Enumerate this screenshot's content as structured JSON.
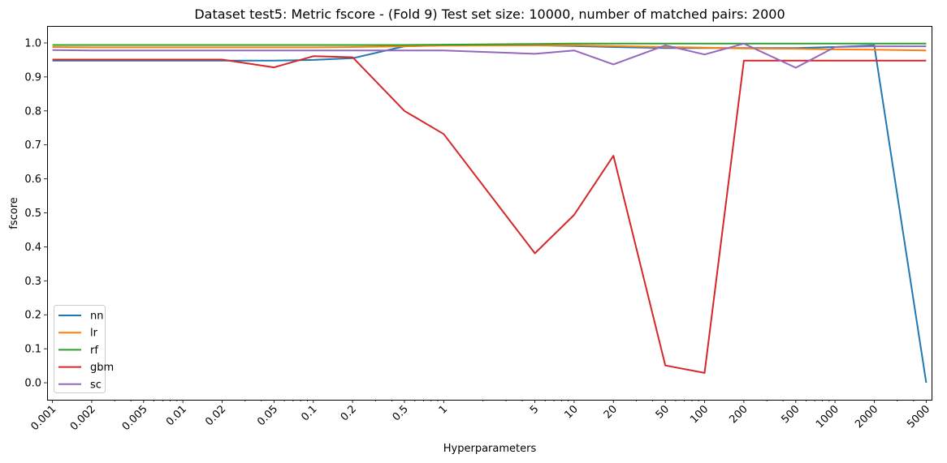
{
  "chart_data": {
    "type": "line",
    "title": "Dataset test5: Metric fscore - (Fold 9) Test set size: 10000, number of matched pairs: 2000",
    "xlabel": "Hyperparameters",
    "ylabel": "fscore",
    "xscale": "log",
    "xlim": [
      0.00091,
      5500
    ],
    "ylim": [
      -0.05,
      1.05
    ],
    "x": [
      0.001,
      0.002,
      0.005,
      0.01,
      0.02,
      0.05,
      0.1,
      0.2,
      0.5,
      1,
      5,
      10,
      20,
      50,
      100,
      200,
      500,
      1000,
      2000,
      5000
    ],
    "x_tick_labels": [
      "0.001",
      "0.002",
      "0.005",
      "0.01",
      "0.02",
      "0.05",
      "0.1",
      "0.2",
      "0.5",
      "1",
      "5",
      "10",
      "20",
      "50",
      "100",
      "200",
      "500",
      "1000",
      "2000",
      "5000"
    ],
    "y_ticks": [
      0.0,
      0.1,
      0.2,
      0.3,
      0.4,
      0.5,
      0.6,
      0.7,
      0.8,
      0.9,
      1.0
    ],
    "y_tick_labels": [
      "0.0",
      "0.1",
      "0.2",
      "0.3",
      "0.4",
      "0.5",
      "0.6",
      "0.7",
      "0.8",
      "0.9",
      "1.0"
    ],
    "grid": false,
    "legend_position": "lower-left",
    "series": [
      {
        "name": "nn",
        "color": "#1f77b4",
        "values": [
          0.948,
          0.948,
          0.948,
          0.948,
          0.948,
          0.948,
          0.95,
          0.955,
          0.99,
          0.993,
          0.993,
          0.991,
          0.988,
          0.985,
          0.985,
          0.985,
          0.985,
          0.988,
          0.993,
          0.0
        ]
      },
      {
        "name": "lr",
        "color": "#ff7f0e",
        "values": [
          0.988,
          0.987,
          0.987,
          0.987,
          0.987,
          0.987,
          0.987,
          0.988,
          0.99,
          0.992,
          0.993,
          0.993,
          0.991,
          0.988,
          0.986,
          0.984,
          0.983,
          0.981,
          0.98,
          0.978
        ]
      },
      {
        "name": "rf",
        "color": "#2ca02c",
        "values": [
          0.994,
          0.994,
          0.994,
          0.994,
          0.994,
          0.994,
          0.994,
          0.994,
          0.994,
          0.995,
          0.997,
          0.998,
          0.998,
          0.998,
          0.998,
          0.998,
          0.998,
          0.998,
          0.998,
          0.998
        ]
      },
      {
        "name": "gbm",
        "color": "#d62728",
        "values": [
          0.951,
          0.951,
          0.951,
          0.951,
          0.951,
          0.928,
          0.961,
          0.958,
          0.8,
          0.732,
          0.381,
          0.494,
          0.668,
          0.051,
          0.029,
          0.948,
          0.948,
          0.948,
          0.948,
          0.948
        ]
      },
      {
        "name": "sc",
        "color": "#9467bd",
        "values": [
          0.979,
          0.978,
          0.978,
          0.978,
          0.978,
          0.978,
          0.978,
          0.978,
          0.978,
          0.978,
          0.968,
          0.978,
          0.937,
          0.993,
          0.966,
          0.998,
          0.927,
          0.988,
          0.99,
          0.99
        ]
      }
    ]
  }
}
